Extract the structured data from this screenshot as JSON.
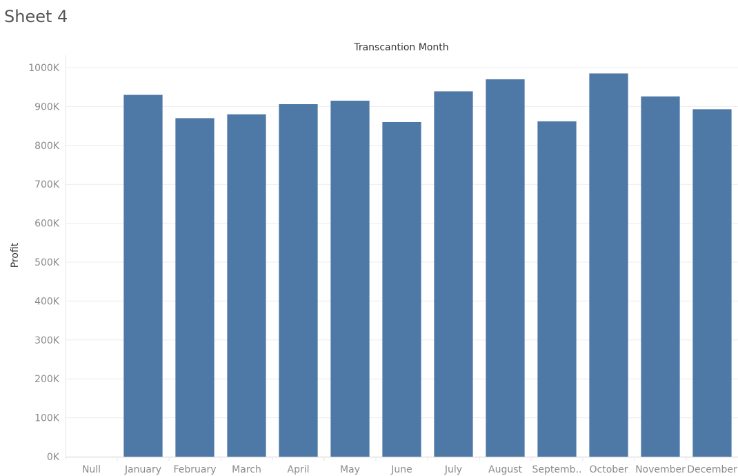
{
  "sheet_title": "Sheet 4",
  "chart_data": {
    "type": "bar",
    "title": "",
    "xlabel": "Transcantion Month",
    "ylabel": "Profit",
    "categories": [
      "Null",
      "January",
      "February",
      "March",
      "April",
      "May",
      "June",
      "July",
      "August",
      "Septemb..",
      "October",
      "November",
      "December"
    ],
    "values": [
      null,
      930000,
      870000,
      880000,
      906000,
      915000,
      860000,
      939000,
      970000,
      862000,
      985000,
      926000,
      893000
    ],
    "yticks": [
      0,
      100000,
      200000,
      300000,
      400000,
      500000,
      600000,
      700000,
      800000,
      900000,
      1000000
    ],
    "ytick_labels": [
      "0K",
      "100K",
      "200K",
      "300K",
      "400K",
      "500K",
      "600K",
      "700K",
      "800K",
      "900K",
      "1000K"
    ],
    "ylim": [
      0,
      1000000
    ],
    "grid": true,
    "colors": {
      "bar": "#4e79a7"
    }
  }
}
